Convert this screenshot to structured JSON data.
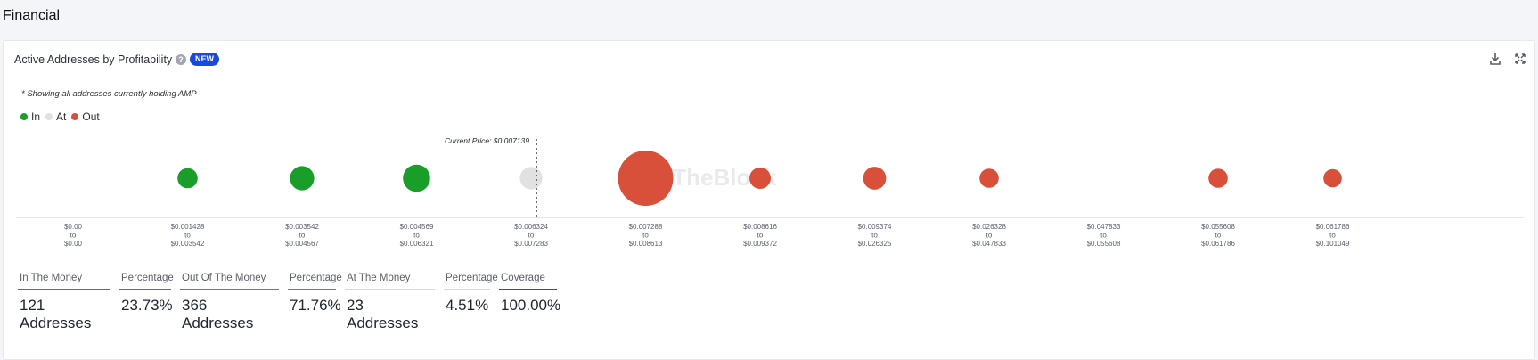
{
  "page": {
    "section_title": "Financial"
  },
  "card": {
    "title": "Active Addresses by Profitability",
    "badge": "NEW",
    "footnote": "* Showing all addresses currently holding AMP"
  },
  "legend": [
    {
      "label": "In",
      "color": "#1a9e2a"
    },
    {
      "label": "At",
      "color": "#e1e1e1"
    },
    {
      "label": "Out",
      "color": "#d9503a"
    }
  ],
  "chart_data": {
    "type": "scatter",
    "current_price_label": "Current Price: $0.007139",
    "current_price_after_bucket": 4,
    "watermark": "IntoTheBlock",
    "buckets": [
      {
        "from": "$0.00",
        "to": "$0.00",
        "status": "in",
        "size": 0
      },
      {
        "from": "$0.001428",
        "to": "$0.003542",
        "status": "in",
        "size": 2
      },
      {
        "from": "$0.003542",
        "to": "$0.004567",
        "status": "in",
        "size": 6
      },
      {
        "from": "$0.004569",
        "to": "$0.006321",
        "status": "in",
        "size": 10
      },
      {
        "from": "$0.006324",
        "to": "$0.007283",
        "status": "at",
        "size": 4
      },
      {
        "from": "$0.007288",
        "to": "$0.008613",
        "status": "out",
        "size": 100
      },
      {
        "from": "$0.008616",
        "to": "$0.009372",
        "status": "out",
        "size": 3
      },
      {
        "from": "$0.009374",
        "to": "$0.026325",
        "status": "out",
        "size": 4.5
      },
      {
        "from": "$0.026328",
        "to": "$0.047833",
        "status": "out",
        "size": 1.5
      },
      {
        "from": "$0.047833",
        "to": "$0.055608",
        "status": "out",
        "size": 0
      },
      {
        "from": "$0.055608",
        "to": "$0.061786",
        "status": "out",
        "size": 1.5
      },
      {
        "from": "$0.061786",
        "to": "$0.101049",
        "status": "out",
        "size": 1
      }
    ]
  },
  "stats": [
    {
      "label": "In The Money",
      "value": "121 Addresses",
      "color": "#1a9e2a",
      "width": 104
    },
    {
      "label": "Percentage",
      "value": "23.73%",
      "color": "#1a9e2a",
      "width": 58
    },
    {
      "label": "Out Of The Money",
      "value": "366 Addresses",
      "color": "#d9503a",
      "width": 111
    },
    {
      "label": "Percentage",
      "value": "71.76%",
      "color": "#d9503a",
      "width": 54
    },
    {
      "label": "At The Money",
      "value": "23 Addresses",
      "color": "#d8d8d8",
      "width": 101
    },
    {
      "label": "Percentage",
      "value": "4.51%",
      "color": "#d8d8d8",
      "width": 52
    },
    {
      "label": "Coverage",
      "value": "100.00%",
      "color": "#1a49e0",
      "width": 65
    }
  ]
}
